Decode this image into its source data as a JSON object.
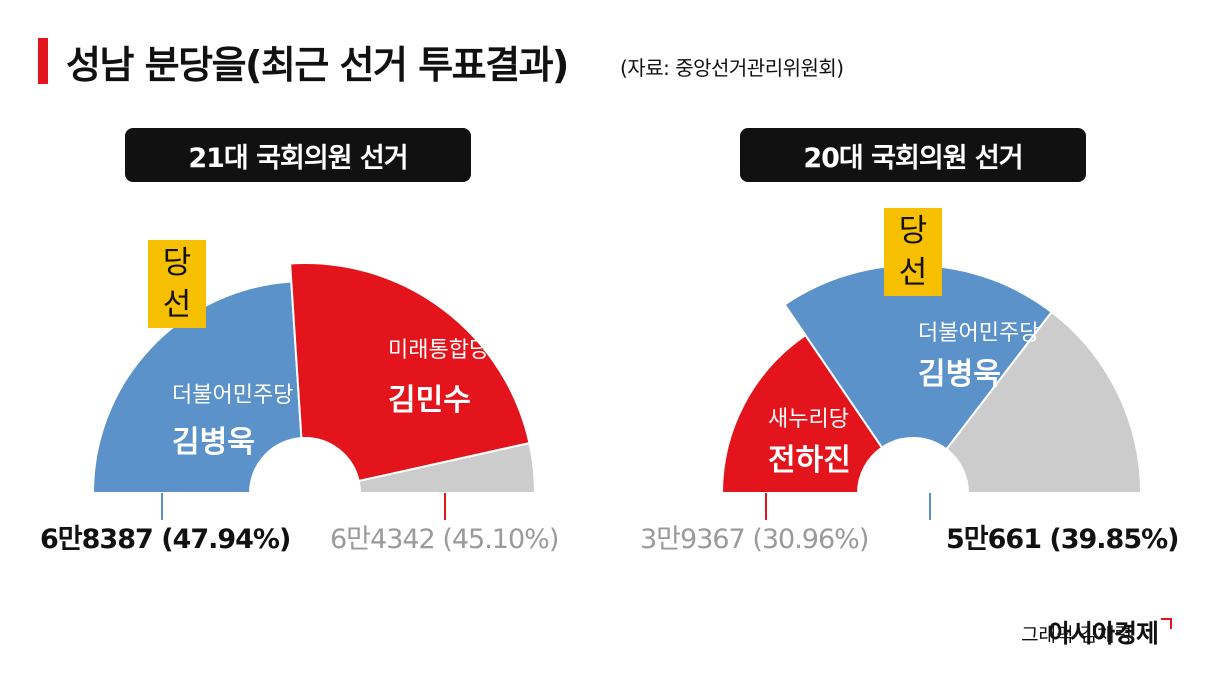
{
  "header": {
    "title": "성남 분당을(최근 선거 투표결과)",
    "source": "(자료: 중앙선거관리위원회)"
  },
  "chart_data": [
    {
      "type": "pie",
      "variant": "half-donut",
      "title": "21대 국회의원 선거",
      "winner_label": "당선",
      "slices": [
        {
          "party": "더불어민주당",
          "candidate": "김병욱",
          "votes_text": "6만8387",
          "percent_text": "(47.94%)",
          "value": 47.94,
          "color": "#5b92c9",
          "winner": true
        },
        {
          "party": "미래통합당",
          "candidate": "김민수",
          "votes_text": "6만4342",
          "percent_text": "(45.10%)",
          "value": 45.1,
          "color": "#e3141b",
          "winner": false
        },
        {
          "party": "",
          "candidate": "",
          "votes_text": "",
          "percent_text": "",
          "value": 6.96,
          "color": "#cccccc",
          "winner": false
        }
      ]
    },
    {
      "type": "pie",
      "variant": "half-donut",
      "title": "20대 국회의원 선거",
      "winner_label": "당선",
      "slices": [
        {
          "party": "새누리당",
          "candidate": "전하진",
          "votes_text": "3만9367",
          "percent_text": "(30.96%)",
          "value": 30.96,
          "color": "#e3141b",
          "winner": false
        },
        {
          "party": "더불어민주당",
          "candidate": "김병욱",
          "votes_text": "5만661",
          "percent_text": "(39.85%)",
          "value": 39.85,
          "color": "#5b92c9",
          "winner": true
        },
        {
          "party": "",
          "candidate": "",
          "votes_text": "",
          "percent_text": "",
          "value": 29.19,
          "color": "#cccccc",
          "winner": false
        }
      ]
    }
  ],
  "footer": {
    "credit": "그래픽 김채령",
    "logo": "아시아경제"
  }
}
